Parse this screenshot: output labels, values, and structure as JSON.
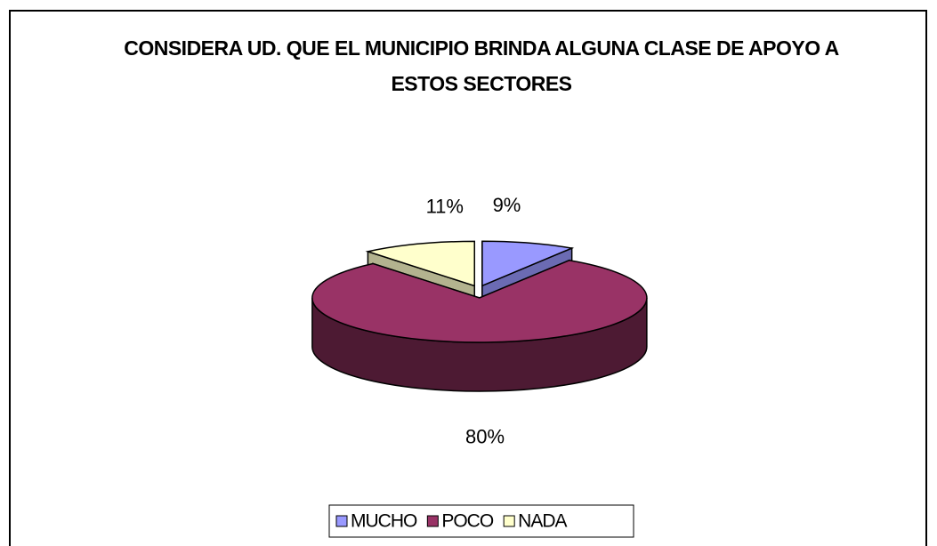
{
  "chart_data": {
    "type": "pie3d",
    "title": "CONSIDERA UD. QUE EL MUNICIPIO BRINDA ALGUNA CLASE DE APOYO A ESTOS SECTORES",
    "categories": [
      "MUCHO",
      "POCO",
      "NADA"
    ],
    "values": [
      9,
      80,
      11
    ],
    "value_labels": [
      "9%",
      "80%",
      "11%"
    ],
    "colors": [
      "#9999ff",
      "#993366",
      "#ffffcc"
    ],
    "legend": "bottom"
  }
}
